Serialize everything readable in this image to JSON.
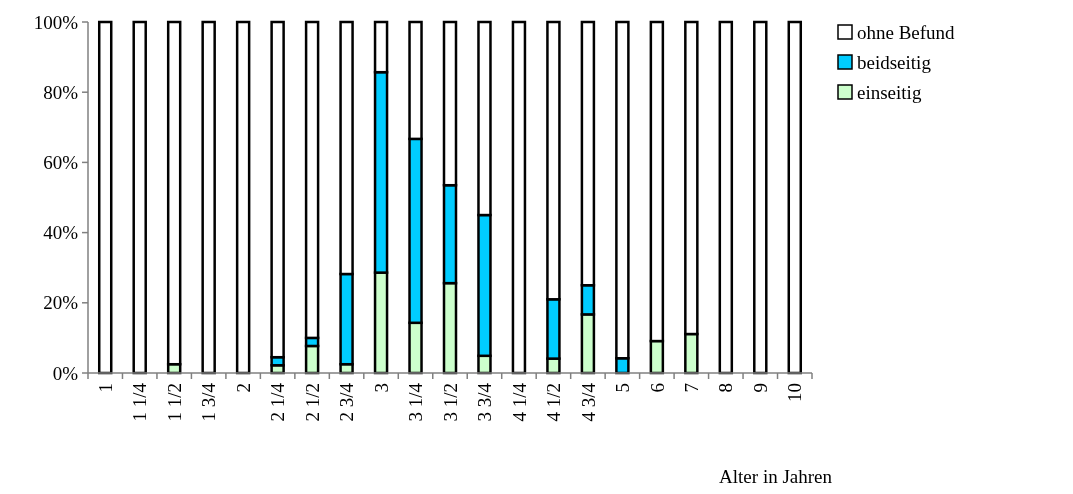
{
  "chart_data": {
    "type": "bar",
    "stacked": true,
    "xlabel": "Alter in Jahren",
    "categories": [
      "1",
      "1 1/4",
      "1 1/2",
      "1 3/4",
      "2",
      "2 1/4",
      "2 1/2",
      "2 3/4",
      "3",
      "3 1/4",
      "3 1/2",
      "3 3/4",
      "4 1/4",
      "4 1/2",
      "4 3/4",
      "5",
      "6",
      "7",
      "8",
      "9",
      "10"
    ],
    "series": [
      {
        "name": "einseitig",
        "color": "#ccffcc",
        "values": [
          0,
          0,
          2.5,
          0,
          0,
          2.2,
          7.7,
          2.5,
          28.6,
          14.3,
          25.6,
          4.9,
          0,
          4.1,
          16.7,
          0,
          9.1,
          11.1,
          0,
          0,
          0
        ]
      },
      {
        "name": "beidseitig",
        "color": "#00ccff",
        "values": [
          0,
          0,
          0,
          0,
          0,
          2.3,
          2.3,
          25.7,
          57.1,
          52.4,
          27.9,
          40.1,
          0,
          16.9,
          8.3,
          4.2,
          0,
          0,
          0,
          0,
          0
        ]
      },
      {
        "name": "ohne Befund",
        "color": "#ffffff",
        "values": [
          100,
          100,
          97.5,
          100,
          100,
          95.5,
          90,
          71.8,
          14.3,
          33.3,
          46.5,
          55,
          100,
          79,
          75,
          95.8,
          90.9,
          88.9,
          100,
          100,
          100
        ]
      }
    ],
    "ylim": [
      0,
      100
    ],
    "yticks": [
      {
        "value": 0,
        "label": "0%"
      },
      {
        "value": 20,
        "label": "20%"
      },
      {
        "value": 40,
        "label": "40%"
      },
      {
        "value": 60,
        "label": "60%"
      },
      {
        "value": 80,
        "label": "80%"
      },
      {
        "value": 100,
        "label": "100%"
      }
    ],
    "grid": false,
    "legend": "top right"
  }
}
